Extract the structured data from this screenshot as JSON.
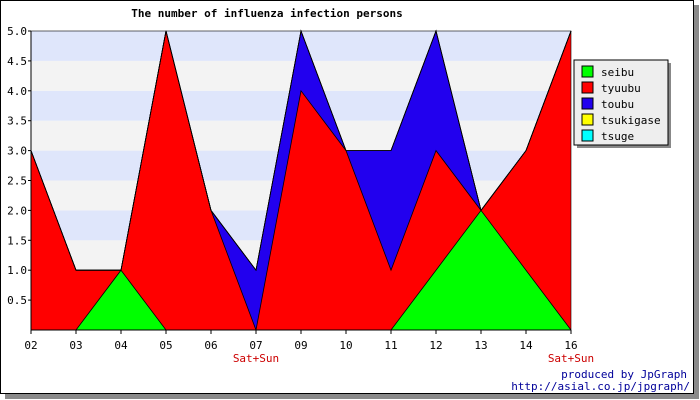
{
  "chart_data": {
    "type": "area",
    "title": "The number of influenza infection persons",
    "categories": [
      "02",
      "03",
      "04",
      "05",
      "06",
      "07",
      "09",
      "10",
      "11",
      "12",
      "13",
      "14",
      "16"
    ],
    "weekend_labels": {
      "07": "Sat+Sun",
      "16": "Sat+Sun"
    },
    "ylim": [
      0,
      5
    ],
    "yticks": [
      "0.5",
      "1.0",
      "1.5",
      "2.0",
      "2.5",
      "3.0",
      "3.5",
      "4.0",
      "4.5",
      "5.0"
    ],
    "stacked": true,
    "series": [
      {
        "name": "seibu",
        "color": "#00ff00",
        "values": [
          0,
          0,
          1,
          0,
          0,
          0,
          0,
          0,
          0,
          1,
          2,
          1,
          0
        ]
      },
      {
        "name": "tyuubu",
        "color": "#ff0000",
        "values": [
          3,
          1,
          0,
          5,
          2,
          0,
          4,
          3,
          1,
          2,
          0,
          2,
          5
        ]
      },
      {
        "name": "toubu",
        "color": "#2200ee",
        "values": [
          0,
          0,
          0,
          0,
          0,
          1,
          1,
          0,
          2,
          2,
          0,
          0,
          0
        ]
      },
      {
        "name": "tsukigase",
        "color": "#ffff00",
        "values": [
          0,
          0,
          0,
          0,
          0,
          0,
          0,
          0,
          0,
          0,
          0,
          0,
          0
        ]
      },
      {
        "name": "tsuge",
        "color": "#00ffff",
        "values": [
          0,
          0,
          0,
          0,
          0,
          0,
          0,
          0,
          0,
          0,
          0,
          0,
          0
        ]
      }
    ],
    "grid": "horizontal-bands",
    "legend_position": "right"
  },
  "credits": {
    "line1": "produced by JpGraph",
    "line2": "http://asial.co.jp/jpgraph/"
  },
  "colors": {
    "band_light": "#dfe6fb",
    "band_alt": "#f3f3f3",
    "weekend": "#cc0000",
    "credit": "#000099"
  }
}
